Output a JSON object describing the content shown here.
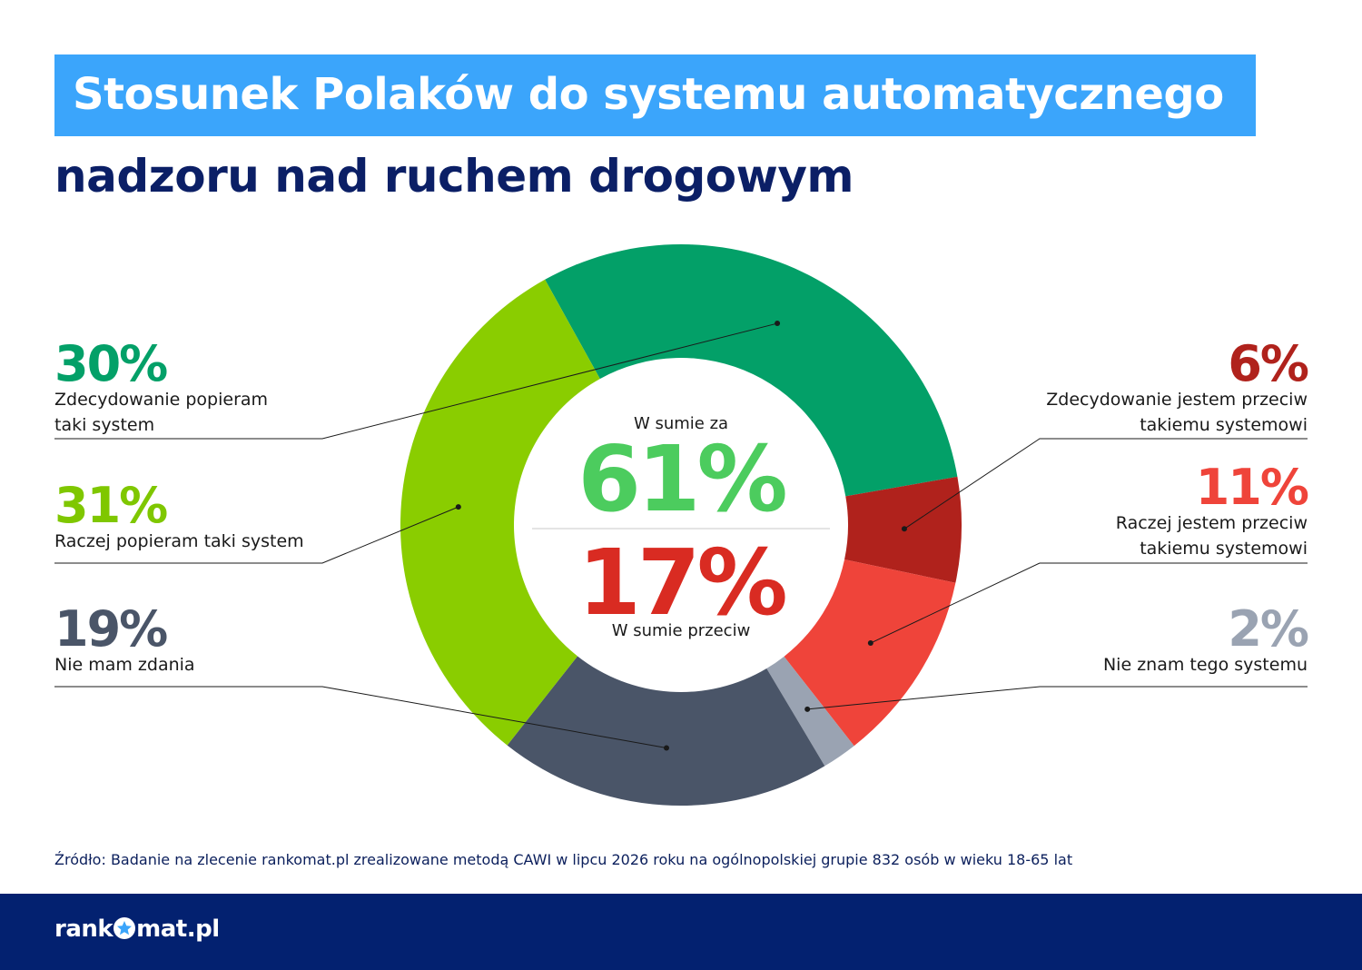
{
  "title": {
    "line1": "Stosunek Polaków do systemu automatycznego",
    "line2": "nadzoru nad ruchem drogowym"
  },
  "chart_data": {
    "type": "pie",
    "donut": true,
    "slices": [
      {
        "key": "s30",
        "value": 30,
        "pct_label": "30%",
        "label_lines": [
          "Zdecydowanie popieram",
          "taki system"
        ],
        "color": "#03a068",
        "side": "left"
      },
      {
        "key": "s6",
        "value": 6,
        "pct_label": "6%",
        "label_lines": [
          "Zdecydowanie jestem przeciw",
          "takiemu systemowi"
        ],
        "color": "#b0221c",
        "side": "right"
      },
      {
        "key": "s11",
        "value": 11,
        "pct_label": "11%",
        "label_lines": [
          "Raczej jestem przeciw",
          "takiemu systemowi"
        ],
        "color": "#ef443a",
        "side": "right"
      },
      {
        "key": "s2",
        "value": 2,
        "pct_label": "2%",
        "label_lines": [
          "Nie znam tego systemu"
        ],
        "color": "#9aa3b2",
        "side": "right"
      },
      {
        "key": "s19",
        "value": 19,
        "pct_label": "19%",
        "label_lines": [
          "Nie mam zdania"
        ],
        "color": "#4a5568",
        "side": "left"
      },
      {
        "key": "s31",
        "value": 31,
        "pct_label": "31%",
        "label_lines": [
          "Raczej popieram taki system"
        ],
        "color": "#8acd00",
        "side": "left"
      }
    ],
    "center": {
      "top_label": "W sumie za",
      "top_value": "61%",
      "top_color": "#4ccc5e",
      "bottom_value": "17%",
      "bottom_color": "#d92b22",
      "bottom_label": "W sumie przeciw"
    },
    "percent_colors": {
      "s30": "#03a068",
      "s31": "#7fc700",
      "s19": "#4a5568",
      "s6": "#b0221c",
      "s11": "#ef443a",
      "s2": "#9aa3b2"
    }
  },
  "source": "Źródło: Badanie na zlecenie rankomat.pl zrealizowane metodą CAWI w lipcu 2026 roku na ogólnopolskiej grupie 832 osób w wieku 18-65 lat",
  "footer": {
    "logo_left": "rank",
    "logo_right": "mat.pl"
  }
}
